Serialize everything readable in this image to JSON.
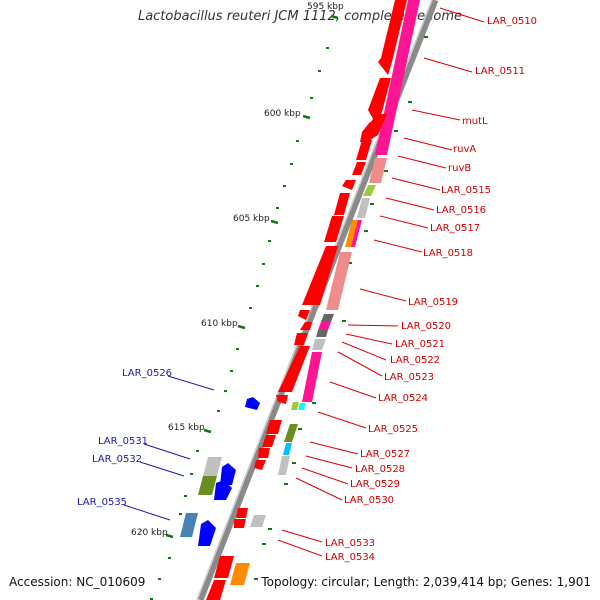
{
  "title": "Lactobacillus reuteri JCM 1112, complete genome",
  "footer": {
    "accession": "Accession: NC_010609",
    "stats": "Topology: circular; Length: 2,039,414 bp; Genes: 1,901"
  },
  "scale_labels": [
    "595 kbp",
    "600 kbp",
    "605 kbp",
    "610 kbp",
    "615 kbp",
    "620 kbp"
  ],
  "genes_right": [
    "LAR_0510",
    "LAR_0511",
    "mutL",
    "ruvA",
    "ruvB",
    "LAR_0515",
    "LAR_0516",
    "LAR_0517",
    "LAR_0518",
    "LAR_0519",
    "LAR_0520",
    "LAR_0521",
    "LAR_0522",
    "LAR_0523",
    "LAR_0524",
    "LAR_0525",
    "LAR_0527",
    "LAR_0528",
    "LAR_0529",
    "LAR_0530",
    "LAR_0533",
    "LAR_0534"
  ],
  "genes_left": [
    "LAR_0526",
    "LAR_0531",
    "LAR_0532",
    "LAR_0535"
  ],
  "colors": {
    "gene": "#ff0000",
    "cds": "#ff1493",
    "minus": "#0000ff",
    "label_right": "#cc0000",
    "label_left": "#1a1aaa",
    "tick": "#117711"
  }
}
